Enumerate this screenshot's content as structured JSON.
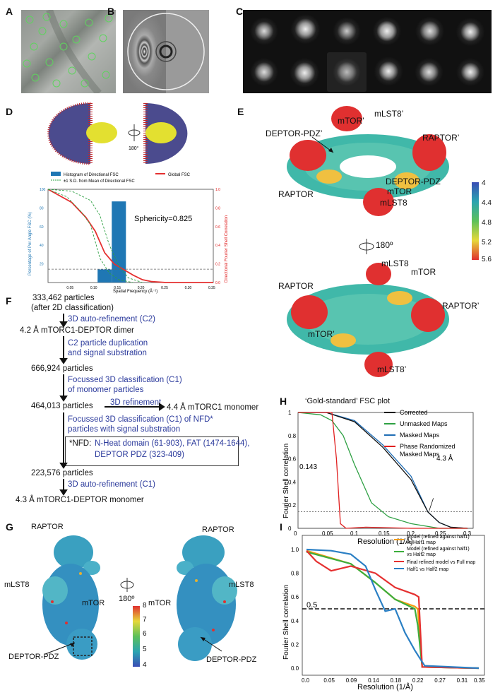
{
  "panels": {
    "a": "A",
    "b": "B",
    "c": "C",
    "d": "D",
    "e": "E",
    "f": "F",
    "g": "G",
    "h": "H",
    "i": "I"
  },
  "d": {
    "rot_label": "180°",
    "legend_hist": "Histogram of Directional FSC",
    "legend_global": "Global FSC",
    "legend_sd": "±1 S.D. from Mean of Directional FSC",
    "sphericity": "Sphericity=0.825",
    "ylabel_left": "Percentage of Per Angle FSC (%)",
    "ylabel_right": "Directional Fourier Shell Correlation",
    "xlabel": "Spatial Frequency (Å⁻¹)"
  },
  "e": {
    "labels": {
      "mtor_p": "mTOR’",
      "mlst8_p": "mLST8’",
      "deptor_pdz_p": "DEPTOR-PDZ’",
      "raptor_p": "RAPTOR’",
      "raptor": "RAPTOR",
      "deptor_pdz": "DEPTOR-PDZ",
      "mtor": "mTOR",
      "mlst8": "mLST8",
      "b_mlst8": "mLST8",
      "b_mtor": "mTOR",
      "b_raptor": "RAPTOR",
      "b_raptor_p": "RAPTOR’",
      "b_mtor_p": "mTOR’",
      "b_mlst8_p": "mLST8’"
    },
    "rot_label": "180º",
    "colorbar": [
      "4",
      "4.4",
      "4.8",
      "5.2",
      "5.6"
    ]
  },
  "f": {
    "l1": "333,462 particles",
    "l2": "(after 2D classification)",
    "s1": "3D auto-refinement (C2)",
    "l3": "4.2 Å mTORC1-DEPTOR dimer",
    "s2a": "C2 particle duplication",
    "s2b": "and signal substration",
    "l4": "666,924 particles",
    "s3a": "Focussed 3D classification (C1)",
    "s3b": "of monomer particles",
    "l5": "464,013 particles",
    "s4": "3D refinement",
    "l6": "4.4 Å mTORC1 monomer",
    "s5a": "Focussed 3D classification (C1) of NFD*",
    "s5b": "particles with signal substration",
    "nfd_a": "*NFD:",
    "nfd_b": "N-Heat domain (61-903), FAT (1474-1644),",
    "nfd_c": "DEPTOR PDZ (323-409)",
    "l7": "223,576 particles",
    "s6": "3D auto-refinement (C1)",
    "l8": "4.3 Å mTORC1-DEPTOR monomer"
  },
  "g": {
    "raptor_l": "RAPTOR",
    "mlst8_l": "mLST8",
    "mtor_l": "mTOR",
    "deptor_l": "DEPTOR-PDZ",
    "raptor_r": "RAPTOR",
    "mlst8_r": "mLST8",
    "mtor_r": "mTOR",
    "deptor_r": "DEPTOR-PDZ",
    "rot_label": "180º",
    "colorbar": [
      "8",
      "7",
      "6",
      "5",
      "4"
    ]
  },
  "h": {
    "title": "‘Gold-standard’ FSC plot",
    "ylabel": "Fourier Shell correlation",
    "xlabel": "Resolution (1/Å)",
    "threshold": "0.143",
    "res_label": "4.3 Å",
    "legend": [
      "Corrected",
      "Unmasked Maps",
      "Masked Maps",
      "Phase Randomized",
      "Masked Maps"
    ]
  },
  "i": {
    "ylabel": "Fourier Shell correlation",
    "xlabel": "Resolution (1/Å)",
    "threshold": "0.5",
    "legend": [
      "Model (refined against half1)",
      "vs Half1 map",
      "Model (refined against half1)",
      "vs Half2 map",
      "Final refined model vs Full map",
      "Half1 vs Half2 map"
    ]
  },
  "colors": {
    "blue_text": "#2b3a9c",
    "corrected": "#111111",
    "unmasked": "#2ea043",
    "masked": "#1f6db5",
    "phase": "#e02020",
    "orange": "#f39c12",
    "green": "#3cae3c",
    "red": "#e53030",
    "blue": "#2a7fc4"
  },
  "chart_data": [
    {
      "type": "bar",
      "title": "",
      "xlabel": "Spatial Frequency (Å⁻¹)",
      "ylabel": "Percentage of Per Angle FSC (%)",
      "xlim": [
        0,
        0.35
      ],
      "ylim": [
        0,
        100
      ],
      "categories": [
        0.12,
        0.15
      ],
      "values": [
        14,
        87
      ],
      "series": [
        {
          "name": "Histogram of Directional FSC",
          "values": [
            14,
            87
          ]
        }
      ],
      "xticks": [
        "0.05",
        "0.10",
        "0.15",
        "0.20",
        "0.25",
        "0.30",
        "0.35"
      ],
      "yticks": [
        "20",
        "40",
        "60",
        "80",
        "100"
      ],
      "yticks_right": [
        "0.0",
        "0.2",
        "0.4",
        "0.6",
        "0.8",
        "1.0"
      ]
    },
    {
      "type": "line",
      "title": "‘Gold-standard’ FSC plot",
      "xlabel": "Resolution (1/Å)",
      "ylabel": "Fourier Shell correlation",
      "xlim": [
        0,
        0.31
      ],
      "ylim": [
        0,
        1
      ],
      "xticks": [
        "0",
        "0.05",
        "0.1",
        "0.15",
        "0.2",
        "0.25",
        "0.3"
      ],
      "yticks": [
        "0",
        "0.2",
        "0.4",
        "0.6",
        "0.8",
        "1"
      ],
      "series": [
        {
          "name": "Corrected",
          "x": [
            0,
            0.05,
            0.1,
            0.15,
            0.2,
            0.23,
            0.25,
            0.27,
            0.3
          ],
          "values": [
            1,
            1,
            0.92,
            0.7,
            0.42,
            0.14,
            0.05,
            0.01,
            0
          ]
        },
        {
          "name": "Unmasked Maps",
          "x": [
            0,
            0.04,
            0.06,
            0.08,
            0.1,
            0.13,
            0.16,
            0.2,
            0.25,
            0.3
          ],
          "values": [
            1,
            0.98,
            0.93,
            0.8,
            0.55,
            0.22,
            0.1,
            0.04,
            0,
            0
          ]
        },
        {
          "name": "Masked Maps",
          "x": [
            0,
            0.05,
            0.1,
            0.15,
            0.2,
            0.23,
            0.25,
            0.27,
            0.3
          ],
          "values": [
            1,
            1,
            0.93,
            0.72,
            0.45,
            0.14,
            0.05,
            0.01,
            0
          ]
        },
        {
          "name": "Phase Randomized Masked Maps",
          "x": [
            0,
            0.06,
            0.068,
            0.075,
            0.085,
            0.12,
            0.2,
            0.3
          ],
          "values": [
            1,
            1,
            0.6,
            0.04,
            0,
            0.01,
            0,
            0
          ]
        }
      ]
    },
    {
      "type": "line",
      "title": "",
      "xlabel": "Resolution (1/Å)",
      "ylabel": "Fourier Shell correlation",
      "xlim": [
        0,
        0.35
      ],
      "ylim": [
        0,
        1
      ],
      "xticks": [
        "0.0",
        "0.05",
        "0.09",
        "0.14",
        "0.18",
        "0.22",
        "0.27",
        "0.31",
        "0.35"
      ],
      "yticks": [
        "0.0",
        "0.2",
        "0.4",
        "0.6",
        "0.8",
        "1.0"
      ],
      "series": [
        {
          "name": "Model (refined against half1) vs Half1 map",
          "x": [
            0,
            0.09,
            0.14,
            0.18,
            0.2,
            0.22,
            0.226,
            0.235,
            0.35
          ],
          "values": [
            0.99,
            0.88,
            0.72,
            0.58,
            0.55,
            0.52,
            0.5,
            0.01,
            0.0
          ]
        },
        {
          "name": "Model (refined against half1) vs Half2 map",
          "x": [
            0,
            0.09,
            0.14,
            0.18,
            0.2,
            0.22,
            0.226,
            0.235,
            0.35
          ],
          "values": [
            0.98,
            0.88,
            0.72,
            0.58,
            0.54,
            0.5,
            0.36,
            0.01,
            0.0
          ]
        },
        {
          "name": "Final refined model vs Full map",
          "x": [
            0,
            0.02,
            0.05,
            0.09,
            0.14,
            0.18,
            0.22,
            0.228,
            0.235,
            0.35
          ],
          "values": [
            0.99,
            0.9,
            0.82,
            0.86,
            0.8,
            0.68,
            0.62,
            0.6,
            0.01,
            0.0
          ]
        },
        {
          "name": "Half1 vs Half2 map",
          "x": [
            0,
            0.05,
            0.09,
            0.12,
            0.14,
            0.16,
            0.18,
            0.2,
            0.22,
            0.24,
            0.35
          ],
          "values": [
            1,
            0.99,
            0.96,
            0.86,
            0.66,
            0.48,
            0.5,
            0.3,
            0.15,
            0.02,
            0.0
          ]
        }
      ]
    }
  ]
}
